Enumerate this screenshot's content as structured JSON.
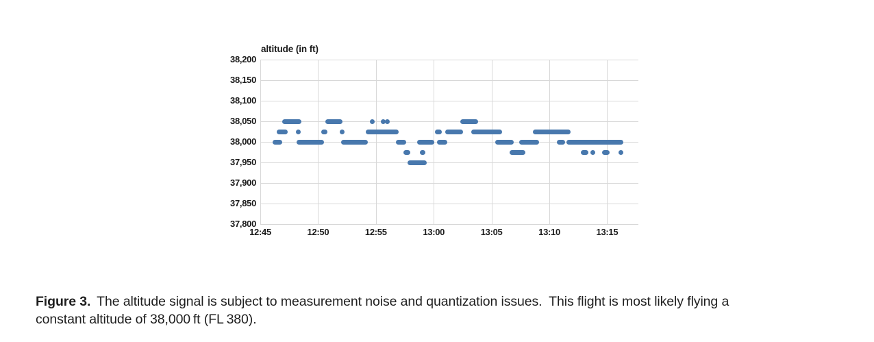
{
  "figure": {
    "caption_label": "Figure 3.",
    "caption_line1_rest": "The altitude signal is subject to measurement noise and quantization issues. This flight is most likely flying a",
    "caption_line2": "constant altitude of 38,000 ft (FL 380)."
  },
  "chart_data": {
    "type": "scatter",
    "title": "altitude (in ft)",
    "xlabel": "",
    "ylabel": "altitude (in ft)",
    "x_tick_labels": [
      "12:45",
      "12:50",
      "12:55",
      "13:00",
      "13:05",
      "13:10",
      "13:15"
    ],
    "x_tick_minutes": [
      0,
      5,
      10,
      15,
      20,
      25,
      30
    ],
    "xlim_minutes": [
      0,
      32.7
    ],
    "x_time_origin": "12:45",
    "y_ticks": [
      38200,
      38150,
      38100,
      38050,
      38000,
      37950,
      37900,
      37850,
      37800
    ],
    "y_tick_labels": [
      "38,200",
      "38,150",
      "38,100",
      "38,050",
      "38,000",
      "37,950",
      "37,900",
      "37,850",
      "37,800"
    ],
    "ylim": [
      37800,
      38200
    ],
    "grid": true,
    "legend": "none",
    "quantization_step_ft": 25,
    "point_color": "#4878ad",
    "grid_color": "#d8d8d8",
    "segments_note": "horizontal runs of merged scatter points; t0/t1 are minutes after 12:45, alt in ft",
    "segments": [
      {
        "alt": 38000,
        "t0": 1.05,
        "t1": 1.9
      },
      {
        "alt": 38025,
        "t0": 1.4,
        "t1": 2.4
      },
      {
        "alt": 38050,
        "t0": 1.9,
        "t1": 3.55
      },
      {
        "alt": 38025,
        "t0": 3.1,
        "t1": 3.45
      },
      {
        "alt": 38000,
        "t0": 3.15,
        "t1": 5.5
      },
      {
        "alt": 38025,
        "t0": 5.25,
        "t1": 5.8
      },
      {
        "alt": 38050,
        "t0": 5.65,
        "t1": 7.1
      },
      {
        "alt": 38025,
        "t0": 6.85,
        "t1": 7.25
      },
      {
        "alt": 38000,
        "t0": 7.0,
        "t1": 9.3
      },
      {
        "alt": 38025,
        "t0": 9.1,
        "t1": 11.95
      },
      {
        "alt": 38050,
        "t0": 9.45,
        "t1": 9.7
      },
      {
        "alt": 38050,
        "t0": 10.4,
        "t1": 10.65
      },
      {
        "alt": 38050,
        "t0": 10.8,
        "t1": 11.05
      },
      {
        "alt": 38000,
        "t0": 11.7,
        "t1": 12.6
      },
      {
        "alt": 37975,
        "t0": 12.4,
        "t1": 13.0
      },
      {
        "alt": 37950,
        "t0": 12.75,
        "t1": 14.4
      },
      {
        "alt": 37975,
        "t0": 13.8,
        "t1": 14.3
      },
      {
        "alt": 38000,
        "t0": 13.55,
        "t1": 15.05
      },
      {
        "alt": 38025,
        "t0": 15.1,
        "t1": 15.7
      },
      {
        "alt": 38000,
        "t0": 15.3,
        "t1": 16.2
      },
      {
        "alt": 38025,
        "t0": 16.0,
        "t1": 17.55
      },
      {
        "alt": 38050,
        "t0": 17.3,
        "t1": 18.85
      },
      {
        "alt": 38025,
        "t0": 18.25,
        "t1": 20.9
      },
      {
        "alt": 38000,
        "t0": 20.3,
        "t1": 21.9
      },
      {
        "alt": 37975,
        "t0": 21.55,
        "t1": 22.9
      },
      {
        "alt": 38000,
        "t0": 22.4,
        "t1": 24.1
      },
      {
        "alt": 38025,
        "t0": 23.6,
        "t1": 26.85
      },
      {
        "alt": 38000,
        "t0": 25.65,
        "t1": 26.35
      },
      {
        "alt": 38000,
        "t0": 26.5,
        "t1": 31.4
      },
      {
        "alt": 37975,
        "t0": 27.7,
        "t1": 28.35
      },
      {
        "alt": 37975,
        "t0": 28.55,
        "t1": 28.85
      },
      {
        "alt": 37975,
        "t0": 29.55,
        "t1": 30.2
      },
      {
        "alt": 37975,
        "t0": 30.95,
        "t1": 31.3
      }
    ]
  }
}
